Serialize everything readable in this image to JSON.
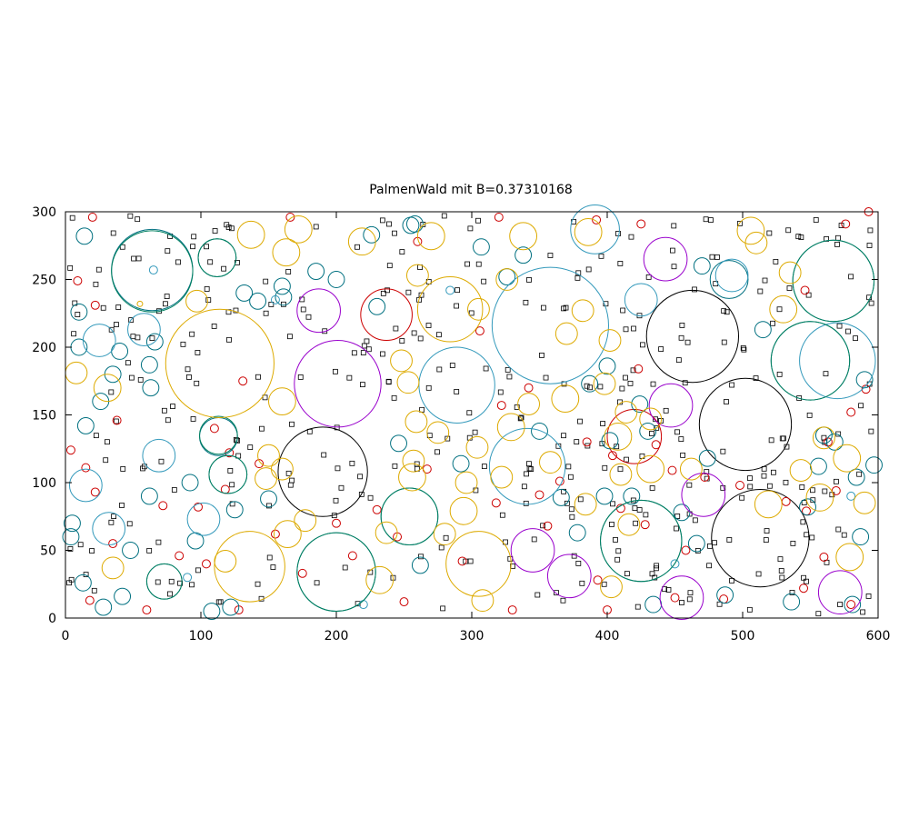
{
  "chart_data": {
    "type": "scatter",
    "title": "PalmenWald mit B=0.37310168",
    "xlabel": "",
    "ylabel": "",
    "xlim": [
      0,
      600
    ],
    "ylim": [
      0,
      300
    ],
    "xticks": [
      0,
      100,
      200,
      300,
      400,
      500,
      600
    ],
    "yticks": [
      0,
      50,
      100,
      150,
      200,
      250,
      300
    ],
    "grid": false,
    "legend": "none",
    "series": [
      {
        "color": "#000000",
        "values": [
          [
            463,
            208,
            34
          ],
          [
            502,
            143,
            34
          ],
          [
            190,
            108,
            33
          ],
          [
            513,
            59,
            36
          ]
        ]
      },
      {
        "color": "#cc0000",
        "values": [
          [
            237,
            224,
            19
          ],
          [
            420,
            134,
            20
          ],
          [
            20,
            296,
            3
          ],
          [
            9,
            249,
            3
          ],
          [
            22,
            231,
            3
          ],
          [
            38,
            146,
            3
          ],
          [
            15,
            111,
            3
          ],
          [
            22,
            93,
            3
          ],
          [
            35,
            55,
            3
          ],
          [
            18,
            13,
            3
          ],
          [
            72,
            83,
            3
          ],
          [
            98,
            82,
            3
          ],
          [
            84,
            46,
            3
          ],
          [
            104,
            40,
            3
          ],
          [
            131,
            175,
            3
          ],
          [
            121,
            122,
            3
          ],
          [
            143,
            114,
            3
          ],
          [
            175,
            33,
            3
          ],
          [
            200,
            70,
            3
          ],
          [
            230,
            80,
            3
          ],
          [
            267,
            110,
            3
          ],
          [
            306,
            212,
            3
          ],
          [
            322,
            157,
            3
          ],
          [
            342,
            170,
            3
          ],
          [
            350,
            91,
            3
          ],
          [
            356,
            68,
            3
          ],
          [
            365,
            101,
            3
          ],
          [
            393,
            28,
            3
          ],
          [
            410,
            81,
            3
          ],
          [
            423,
            184,
            3
          ],
          [
            436,
            128,
            3
          ],
          [
            448,
            109,
            3
          ],
          [
            472,
            104,
            3
          ],
          [
            498,
            98,
            3
          ],
          [
            532,
            86,
            3
          ],
          [
            547,
            79,
            3
          ],
          [
            569,
            94,
            3
          ],
          [
            580,
            152,
            3
          ],
          [
            591,
            169,
            3
          ],
          [
            576,
            291,
            3
          ],
          [
            546,
            242,
            3
          ],
          [
            425,
            291,
            3
          ],
          [
            392,
            294,
            3
          ],
          [
            320,
            296,
            3
          ],
          [
            260,
            278,
            3
          ],
          [
            166,
            296,
            3
          ],
          [
            110,
            140,
            3
          ],
          [
            155,
            62,
            3
          ],
          [
            118,
            95,
            3
          ],
          [
            212,
            46,
            3
          ],
          [
            245,
            60,
            3
          ],
          [
            293,
            42,
            3
          ],
          [
            318,
            85,
            3
          ],
          [
            385,
            130,
            3
          ],
          [
            404,
            120,
            3
          ],
          [
            428,
            69,
            3
          ],
          [
            458,
            50,
            3
          ],
          [
            486,
            14,
            3
          ],
          [
            545,
            22,
            3
          ],
          [
            560,
            45,
            3
          ],
          [
            563,
            130,
            3
          ],
          [
            593,
            300,
            3
          ],
          [
            4,
            124,
            3
          ],
          [
            60,
            6,
            3
          ],
          [
            128,
            6,
            3
          ],
          [
            250,
            12,
            3
          ],
          [
            400,
            6,
            3
          ],
          [
            450,
            15,
            3
          ],
          [
            580,
            10,
            3
          ],
          [
            330,
            6,
            3
          ]
        ]
      },
      {
        "color": "#007080",
        "values": [
          [
            200,
            34,
            29
          ],
          [
            254,
            75,
            21
          ],
          [
            425,
            57,
            30
          ],
          [
            550,
            190,
            29
          ],
          [
            567,
            249,
            30
          ],
          [
            64,
            257,
            30
          ],
          [
            113,
            134,
            14
          ],
          [
            120,
            106,
            14
          ],
          [
            73,
            27,
            13
          ],
          [
            112,
            266,
            14
          ],
          [
            490,
            250,
            14
          ],
          [
            14,
            282,
            6
          ],
          [
            10,
            226,
            6
          ],
          [
            15,
            142,
            6
          ],
          [
            5,
            70,
            6
          ],
          [
            13,
            26,
            6
          ],
          [
            28,
            8,
            6
          ],
          [
            42,
            16,
            6
          ],
          [
            48,
            50,
            6
          ],
          [
            62,
            90,
            6
          ],
          [
            63,
            170,
            6
          ],
          [
            62,
            187,
            6
          ],
          [
            66,
            204,
            6
          ],
          [
            96,
            57,
            6
          ],
          [
            92,
            100,
            6
          ],
          [
            108,
            5,
            6
          ],
          [
            122,
            8,
            6
          ],
          [
            125,
            80,
            6
          ],
          [
            132,
            240,
            6
          ],
          [
            142,
            234,
            6
          ],
          [
            150,
            88,
            6
          ],
          [
            161,
            237,
            6
          ],
          [
            160,
            245,
            6
          ],
          [
            185,
            256,
            6
          ],
          [
            200,
            250,
            6
          ],
          [
            226,
            283,
            6
          ],
          [
            230,
            230,
            6
          ],
          [
            246,
            129,
            6
          ],
          [
            262,
            39,
            6
          ],
          [
            258,
            291,
            6
          ],
          [
            292,
            114,
            6
          ],
          [
            307,
            274,
            6
          ],
          [
            326,
            252,
            6
          ],
          [
            338,
            268,
            6
          ],
          [
            350,
            138,
            6
          ],
          [
            366,
            89,
            6
          ],
          [
            378,
            63,
            6
          ],
          [
            387,
            173,
            6
          ],
          [
            400,
            186,
            6
          ],
          [
            398,
            90,
            6
          ],
          [
            402,
            131,
            6
          ],
          [
            418,
            90,
            6
          ],
          [
            424,
            158,
            6
          ],
          [
            430,
            138,
            6
          ],
          [
            434,
            10,
            6
          ],
          [
            455,
            78,
            6
          ],
          [
            466,
            55,
            6
          ],
          [
            470,
            260,
            6
          ],
          [
            474,
            118,
            6
          ],
          [
            487,
            17,
            6
          ],
          [
            515,
            213,
            6
          ],
          [
            536,
            12,
            6
          ],
          [
            548,
            82,
            6
          ],
          [
            556,
            112,
            6
          ],
          [
            560,
            135,
            6
          ],
          [
            568,
            130,
            6
          ],
          [
            581,
            10,
            6
          ],
          [
            584,
            104,
            6
          ],
          [
            587,
            60,
            6
          ],
          [
            590,
            176,
            6
          ],
          [
            597,
            113,
            6
          ],
          [
            10,
            200,
            6
          ],
          [
            26,
            160,
            6
          ],
          [
            40,
            197,
            6
          ],
          [
            35,
            180,
            6
          ],
          [
            4,
            60,
            6
          ],
          [
            255,
            290,
            6
          ]
        ]
      },
      {
        "color": "#3399bb",
        "values": [
          [
            358,
            216,
            43
          ],
          [
            289,
            172,
            28
          ],
          [
            341,
            112,
            28
          ],
          [
            391,
            287,
            18
          ],
          [
            570,
            190,
            28
          ],
          [
            65,
            257,
            3
          ],
          [
            15,
            98,
            12
          ],
          [
            32,
            66,
            12
          ],
          [
            25,
            205,
            12
          ],
          [
            58,
            213,
            12
          ],
          [
            69,
            120,
            12
          ],
          [
            102,
            73,
            12
          ],
          [
            425,
            235,
            12
          ],
          [
            492,
            253,
            12
          ],
          [
            284,
            242,
            3
          ],
          [
            155,
            235,
            3
          ],
          [
            90,
            30,
            3
          ],
          [
            580,
            90,
            3
          ],
          [
            220,
            10,
            3
          ],
          [
            450,
            40,
            3
          ]
        ]
      },
      {
        "color": "#008060",
        "values": [
          [
            567,
            249,
            30
          ],
          [
            64,
            256,
            30
          ],
          [
            200,
            34,
            29
          ],
          [
            254,
            75,
            21
          ],
          [
            425,
            57,
            30
          ],
          [
            550,
            190,
            29
          ],
          [
            113,
            135,
            14
          ],
          [
            120,
            106,
            14
          ],
          [
            73,
            27,
            13
          ],
          [
            112,
            266,
            14
          ]
        ]
      },
      {
        "color": "#9900cc",
        "values": [
          [
            201,
            173,
            32
          ],
          [
            443,
            265,
            16
          ],
          [
            187,
            227,
            16
          ],
          [
            447,
            157,
            16
          ],
          [
            471,
            91,
            16
          ],
          [
            345,
            50,
            16
          ],
          [
            372,
            31,
            16
          ],
          [
            455,
            15,
            16
          ],
          [
            572,
            19,
            16
          ]
        ]
      },
      {
        "color": "#ddaa00",
        "values": [
          [
            114,
            188,
            40
          ],
          [
            136,
            38,
            26
          ],
          [
            305,
            40,
            24
          ],
          [
            284,
            228,
            24
          ],
          [
            55,
            232,
            2
          ],
          [
            137,
            283,
            10
          ],
          [
            172,
            287,
            10
          ],
          [
            219,
            278,
            10
          ],
          [
            270,
            282,
            10
          ],
          [
            338,
            282,
            10
          ],
          [
            386,
            285,
            10
          ],
          [
            506,
            286,
            10
          ],
          [
            163,
            270,
            10
          ],
          [
            31,
            170,
            10
          ],
          [
            8,
            181,
            8
          ],
          [
            97,
            234,
            8
          ],
          [
            160,
            160,
            10
          ],
          [
            164,
            62,
            10
          ],
          [
            256,
            104,
            10
          ],
          [
            294,
            79,
            10
          ],
          [
            329,
            141,
            10
          ],
          [
            369,
            162,
            10
          ],
          [
            408,
            134,
            10
          ],
          [
            432,
            110,
            10
          ],
          [
            519,
            84,
            10
          ],
          [
            557,
            89,
            10
          ],
          [
            577,
            118,
            10
          ],
          [
            579,
            45,
            10
          ],
          [
            590,
            85,
            8
          ],
          [
            35,
            37,
            8
          ],
          [
            118,
            42,
            8
          ],
          [
            177,
            72,
            8
          ],
          [
            232,
            28,
            10
          ],
          [
            253,
            174,
            8
          ],
          [
            260,
            253,
            8
          ],
          [
            259,
            145,
            8
          ],
          [
            257,
            116,
            8
          ],
          [
            275,
            137,
            8
          ],
          [
            280,
            62,
            8
          ],
          [
            296,
            100,
            8
          ],
          [
            304,
            126,
            8
          ],
          [
            308,
            13,
            8
          ],
          [
            322,
            104,
            8
          ],
          [
            342,
            158,
            8
          ],
          [
            358,
            115,
            8
          ],
          [
            384,
            84,
            8
          ],
          [
            403,
            23,
            8
          ],
          [
            410,
            106,
            8
          ],
          [
            416,
            69,
            8
          ],
          [
            432,
            147,
            8
          ],
          [
            462,
            110,
            8
          ],
          [
            530,
            228,
            10
          ],
          [
            543,
            109,
            8
          ],
          [
            560,
            133,
            8
          ],
          [
            148,
            103,
            8
          ],
          [
            160,
            110,
            8
          ],
          [
            150,
            120,
            8
          ],
          [
            237,
            63,
            8
          ],
          [
            248,
            190,
            8
          ],
          [
            305,
            228,
            8
          ],
          [
            326,
            250,
            8
          ],
          [
            370,
            210,
            8
          ],
          [
            382,
            227,
            8
          ],
          [
            398,
            173,
            8
          ],
          [
            402,
            205,
            8
          ],
          [
            414,
            152,
            8
          ],
          [
            510,
            277,
            8
          ],
          [
            535,
            255,
            8
          ]
        ]
      }
    ]
  }
}
